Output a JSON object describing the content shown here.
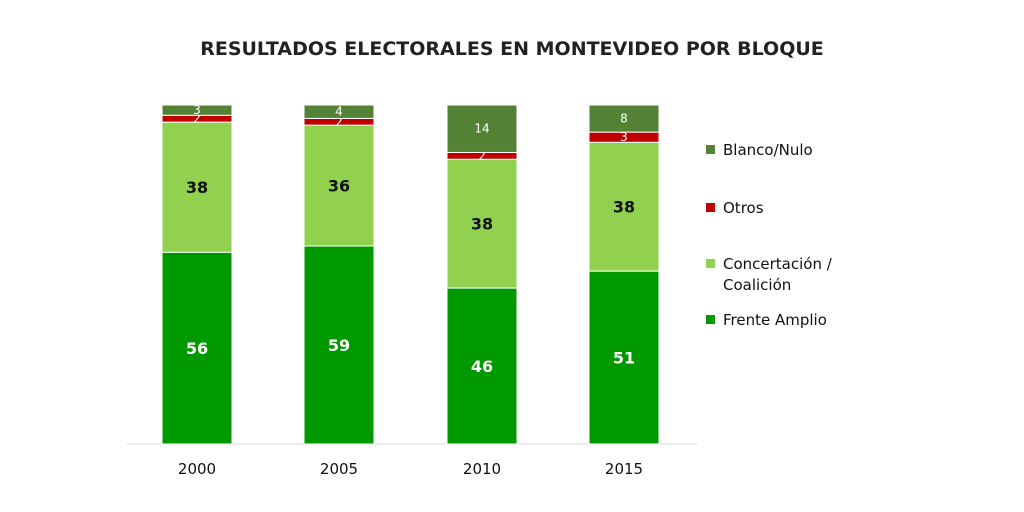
{
  "chart_data": {
    "type": "bar",
    "stacked": true,
    "title": "RESULTADOS ELECTORALES EN MONTEVIDEO POR BLOQUE",
    "categories": [
      "2000",
      "2005",
      "2010",
      "2015"
    ],
    "series": [
      {
        "name": "Frente Amplio",
        "color": "#009900",
        "values": [
          56,
          59,
          46,
          51
        ]
      },
      {
        "name": "Concertación / Coalición",
        "color": "#92d050",
        "values": [
          38,
          36,
          38,
          38
        ]
      },
      {
        "name": "Otros",
        "color": "#c00000",
        "values": [
          2,
          2,
          2,
          3
        ]
      },
      {
        "name": "Blanco/Nulo",
        "color": "#548235",
        "values": [
          3,
          4,
          14,
          8
        ]
      }
    ],
    "legend_order": [
      "Blanco/Nulo",
      "Otros",
      "Concertación /\nCoalición",
      "Frente Amplio"
    ],
    "xlabel": "",
    "ylabel": "",
    "ylim": [
      0,
      100
    ],
    "legend_position": "right"
  }
}
